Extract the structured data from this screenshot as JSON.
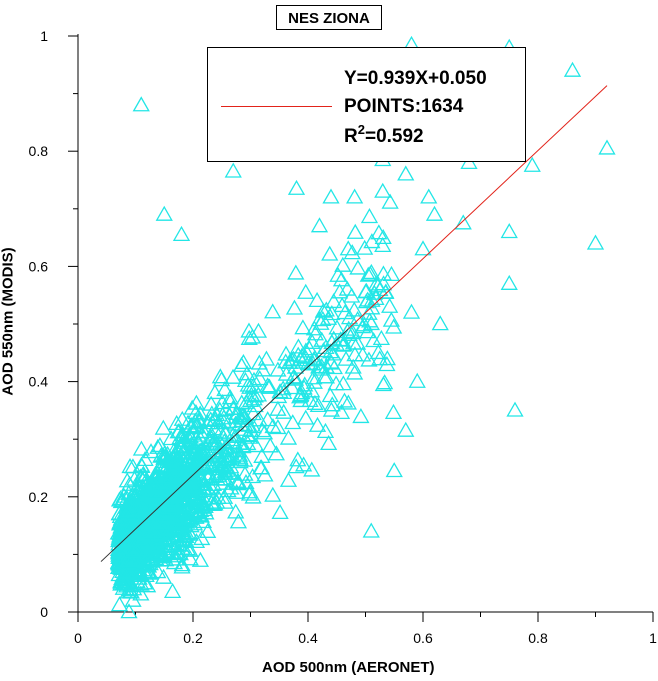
{
  "chart_data": {
    "type": "scatter",
    "title": "NES ZIONA",
    "xlabel": "AOD 500nm (AERONET)",
    "ylabel": "AOD 550nm (MODIS)",
    "xlim": [
      0,
      1
    ],
    "ylim": [
      0,
      1
    ],
    "x_ticks": [
      "0",
      "0.2",
      "0.4",
      "0.6",
      "0.8",
      "1"
    ],
    "y_ticks": [
      "0",
      "0.2",
      "0.4",
      "0.6",
      "0.8",
      "1"
    ],
    "grid": false,
    "marker": "open-triangle",
    "marker_color": "#22e6e6",
    "fit_line_color": "#e2231a",
    "fit": {
      "slope": 0.939,
      "intercept": 0.05,
      "x_range": [
        0.04,
        0.92
      ]
    },
    "legend": {
      "equation": "Y=0.939X+0.050",
      "points": "POINTS:1634",
      "r2_prefix": "R",
      "r2_sup": "2",
      "r2_value": "=0.592",
      "position": "top-center"
    },
    "n_points": 1634,
    "outliers": [
      [
        0.58,
        0.985
      ],
      [
        0.75,
        0.98
      ],
      [
        0.86,
        0.94
      ],
      [
        0.33,
        0.965
      ],
      [
        0.11,
        0.88
      ],
      [
        0.29,
        0.87
      ],
      [
        0.57,
        0.92
      ],
      [
        0.34,
        0.8
      ],
      [
        0.92,
        0.805
      ],
      [
        0.79,
        0.775
      ],
      [
        0.27,
        0.765
      ],
      [
        0.68,
        0.78
      ],
      [
        0.53,
        0.785
      ],
      [
        0.57,
        0.76
      ],
      [
        0.38,
        0.735
      ],
      [
        0.15,
        0.69
      ],
      [
        0.18,
        0.655
      ],
      [
        0.9,
        0.64
      ],
      [
        0.75,
        0.66
      ],
      [
        0.67,
        0.675
      ],
      [
        0.75,
        0.57
      ],
      [
        0.76,
        0.35
      ],
      [
        0.63,
        0.5
      ],
      [
        0.59,
        0.4
      ],
      [
        0.58,
        0.52
      ],
      [
        0.57,
        0.315
      ],
      [
        0.55,
        0.245
      ],
      [
        0.51,
        0.14
      ],
      [
        0.42,
        0.67
      ],
      [
        0.44,
        0.72
      ],
      [
        0.53,
        0.73
      ],
      [
        0.61,
        0.72
      ],
      [
        0.6,
        0.63
      ],
      [
        0.62,
        0.69
      ],
      [
        0.47,
        0.63
      ]
    ]
  }
}
